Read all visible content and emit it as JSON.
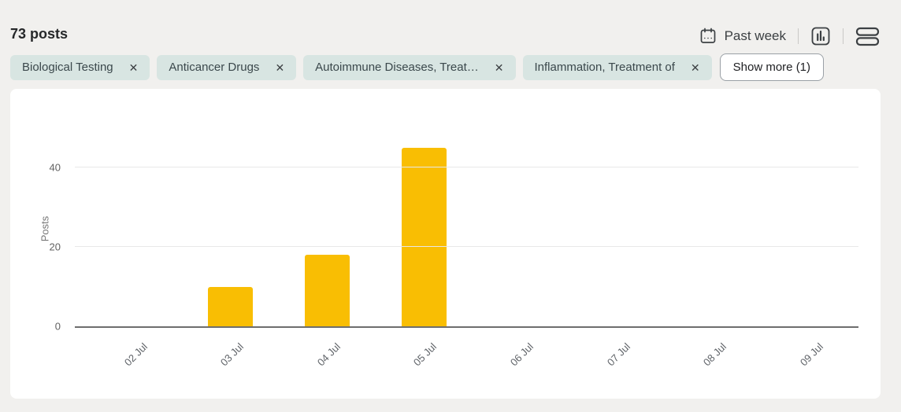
{
  "header": {
    "post_count": "73 posts",
    "date_filter_label": "Past week"
  },
  "filters": {
    "chips": [
      "Biological Testing",
      "Anticancer Drugs",
      "Autoimmune Diseases, Treat…",
      "Inflammation, Treatment of"
    ],
    "show_more_label": "Show more (1)",
    "close_icon": "✕"
  },
  "icons": {
    "calendar": "calendar-icon",
    "chart_view": "bar-chart-icon",
    "list_view": "rows-icon"
  },
  "colors": {
    "bar": "#F9BE03",
    "chip_background": "#d8e5e2",
    "page_background": "#f1f0ee",
    "card_background": "#ffffff"
  },
  "chart_data": {
    "type": "bar",
    "categories": [
      "02 Jul",
      "03 Jul",
      "04 Jul",
      "05 Jul",
      "06 Jul",
      "07 Jul",
      "08 Jul",
      "09 Jul"
    ],
    "values": [
      0,
      10,
      18,
      45,
      0,
      0,
      0,
      0
    ],
    "title": "",
    "xlabel": "",
    "ylabel": "Posts",
    "ylim": [
      0,
      50
    ],
    "yticks": [
      0,
      20,
      40
    ],
    "bar_color": "#F9BE03",
    "grid": true,
    "legend_position": "none"
  }
}
